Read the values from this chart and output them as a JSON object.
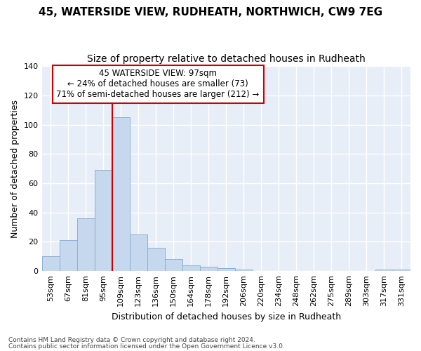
{
  "title1": "45, WATERSIDE VIEW, RUDHEATH, NORTHWICH, CW9 7EG",
  "title2": "Size of property relative to detached houses in Rudheath",
  "xlabel": "Distribution of detached houses by size in Rudheath",
  "ylabel": "Number of detached properties",
  "footnote1": "Contains HM Land Registry data © Crown copyright and database right 2024.",
  "footnote2": "Contains public sector information licensed under the Open Government Licence v3.0.",
  "categories": [
    "53sqm",
    "67sqm",
    "81sqm",
    "95sqm",
    "109sqm",
    "123sqm",
    "136sqm",
    "150sqm",
    "164sqm",
    "178sqm",
    "192sqm",
    "206sqm",
    "220sqm",
    "234sqm",
    "248sqm",
    "262sqm",
    "275sqm",
    "289sqm",
    "303sqm",
    "317sqm",
    "331sqm"
  ],
  "values": [
    10,
    21,
    36,
    69,
    105,
    25,
    16,
    8,
    4,
    3,
    2,
    1,
    0,
    0,
    0,
    0,
    0,
    0,
    0,
    1,
    1
  ],
  "bar_color": "#c5d8ee",
  "bar_edge_color": "#8ab0d4",
  "property_line_color": "#cc0000",
  "annotation_line1": "45 WATERSIDE VIEW: 97sqm",
  "annotation_line2": "← 24% of detached houses are smaller (73)",
  "annotation_line3": "71% of semi-detached houses are larger (212) →",
  "annotation_box_color": "#ffffff",
  "annotation_box_edge_color": "#cc0000",
  "ylim": [
    0,
    140
  ],
  "yticks": [
    0,
    20,
    40,
    60,
    80,
    100,
    120,
    140
  ],
  "bg_color": "#e8eef7",
  "fig_bg_color": "#ffffff",
  "grid_color": "#ffffff",
  "title1_fontsize": 11,
  "title2_fontsize": 10,
  "tick_fontsize": 8,
  "ylabel_fontsize": 9,
  "xlabel_fontsize": 9,
  "footnote_fontsize": 6.5
}
